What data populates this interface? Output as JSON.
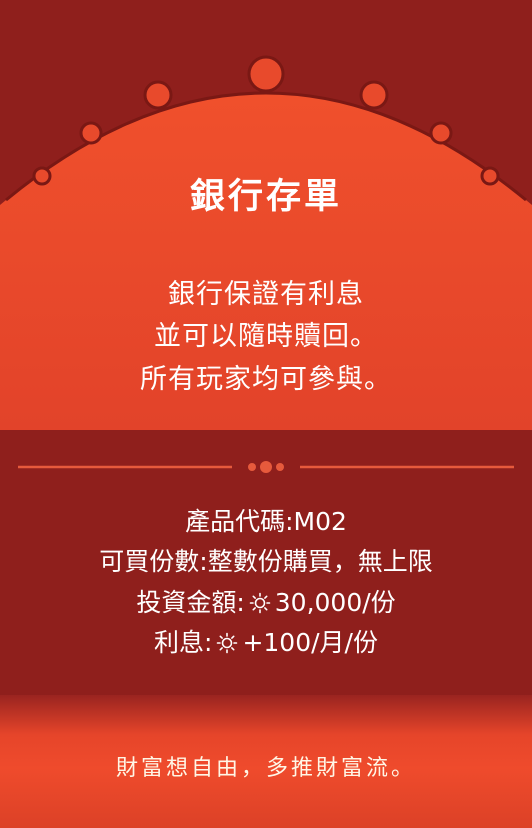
{
  "card": {
    "title": "銀行存單",
    "description": [
      "銀行保證有利息",
      "並可以隨時贖回。",
      "所有玩家均可參與。"
    ],
    "details": {
      "code_label": "產品代碼:M02",
      "quantity_label": "可買份數:整數份購買，無上限",
      "amount_label": "投資金額:",
      "amount_value": "30,000/份",
      "interest_label": "利息:",
      "interest_value": "+100/月/份"
    },
    "slogan": "財富想自由，多推財富流。"
  },
  "colors": {
    "background": "#8f1f1c",
    "arch": "#ec4a2b",
    "text": "#ffffff",
    "accent_line": "#e65a3c"
  },
  "icons": {
    "currency": "sun-coin-icon"
  }
}
